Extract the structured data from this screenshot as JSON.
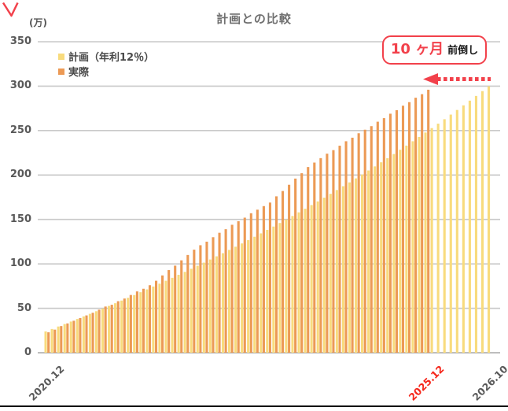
{
  "title": "計画との比較",
  "unit_label": "(万)",
  "colors": {
    "plan": "#F8DB7D",
    "actual": "#EC9A55",
    "gridline": "#C9C9C9",
    "axis_line": "#BDBDBD",
    "axis_text": "#595959",
    "legend_text": "#4A4A4A",
    "title_text": "#707070",
    "red_accent": "#F2414B",
    "red_label": "#F5261B",
    "background": "#FFFFFF",
    "bottom_rule": "#000000"
  },
  "annotation": {
    "value_text": "10 ヶ月",
    "suffix_text": "前倒し",
    "arrow_from": "2026.10",
    "arrow_to": "2025.12"
  },
  "chart_data": {
    "type": "bar",
    "title": "計画との比較",
    "ylabel": "(万)",
    "ylim": [
      0,
      350
    ],
    "yticks": [
      0,
      50,
      100,
      150,
      200,
      250,
      300,
      350
    ],
    "grid": true,
    "legend_position": "top-left",
    "x_unit": "month",
    "x_start": "2020.12",
    "x_end": "2026.10",
    "months_total": 71,
    "xtick_labels": [
      {
        "label": "2020.12",
        "month_index": 0,
        "red": false
      },
      {
        "label": "2025.12",
        "month_index": 60,
        "red": true
      },
      {
        "label": "2026.10",
        "month_index": 70,
        "red": false
      }
    ],
    "series": [
      {
        "name": "計画（年利12％）",
        "color": "#F8DB7D",
        "values": [
          24,
          26.7,
          29.5,
          32.3,
          35.1,
          38,
          40.9,
          43.8,
          46.7,
          49.7,
          52.7,
          55.7,
          58.7,
          61.8,
          64.9,
          68.1,
          71.3,
          74.5,
          77.7,
          81,
          84.3,
          87.7,
          91,
          94.5,
          97.9,
          101.4,
          104.9,
          108.5,
          112,
          115.7,
          119.3,
          123,
          126.7,
          130.5,
          134.3,
          138.2,
          142,
          146,
          149.9,
          153.9,
          158,
          162,
          166.2,
          170.3,
          174.5,
          178.8,
          183.1,
          187.4,
          191.7,
          196.2,
          200.6,
          205.1,
          209.7,
          214.3,
          218.9,
          223.6,
          228.4,
          233.1,
          238,
          242.8,
          247.8,
          252.8,
          257.8,
          262.8,
          268,
          273.2,
          278.4,
          283.7,
          289,
          294.4,
          299.9
        ]
      },
      {
        "name": "実際",
        "color": "#EC9A55",
        "values": [
          23,
          26,
          30,
          33,
          36,
          39,
          42,
          45,
          48.5,
          52,
          54,
          58,
          61,
          65,
          69,
          72,
          76,
          81,
          87,
          93,
          98,
          104,
          110,
          116,
          121,
          125,
          130,
          135,
          139,
          144,
          148,
          152,
          157,
          161,
          165,
          169,
          176,
          182,
          189,
          196,
          202,
          209,
          214,
          219,
          224,
          228,
          233,
          238,
          242,
          247,
          251,
          255,
          260,
          264,
          269,
          273,
          278,
          282,
          287,
          291,
          296
        ]
      }
    ]
  }
}
